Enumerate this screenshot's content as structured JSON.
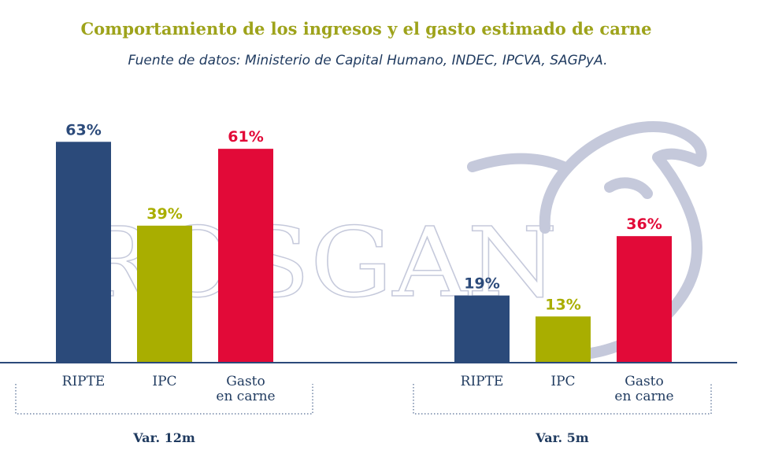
{
  "title": "Comportamiento de los ingresos y el gasto estimado de carne",
  "subtitle": "Fuente de datos: Ministerio de Capital Humano, INDEC, IPCVA, SAGPyA.",
  "watermark": "ROSGAN",
  "colors": {
    "title": "#9ea31b",
    "ripte": "#2b4a7a",
    "ipc": "#a9ae00",
    "gasto": "#e20a38",
    "axis": "#2b4a7a",
    "watermark": "#c5c9db"
  },
  "chart_data": {
    "type": "bar",
    "ylim": [
      0,
      70
    ],
    "groups": [
      {
        "label": "Var. 12m",
        "bars": [
          {
            "category": "RIPTE",
            "value": 63,
            "label": "63%",
            "color_key": "ripte"
          },
          {
            "category": "IPC",
            "value": 39,
            "label": "39%",
            "color_key": "ipc"
          },
          {
            "category": "Gasto en carne",
            "value": 61,
            "label": "61%",
            "color_key": "gasto"
          }
        ]
      },
      {
        "label": "Var. 5m",
        "bars": [
          {
            "category": "RIPTE",
            "value": 19,
            "label": "19%",
            "color_key": "ripte"
          },
          {
            "category": "IPC",
            "value": 13,
            "label": "13%",
            "color_key": "ipc"
          },
          {
            "category": "Gasto en carne",
            "value": 36,
            "label": "36%",
            "color_key": "gasto"
          }
        ]
      }
    ]
  }
}
